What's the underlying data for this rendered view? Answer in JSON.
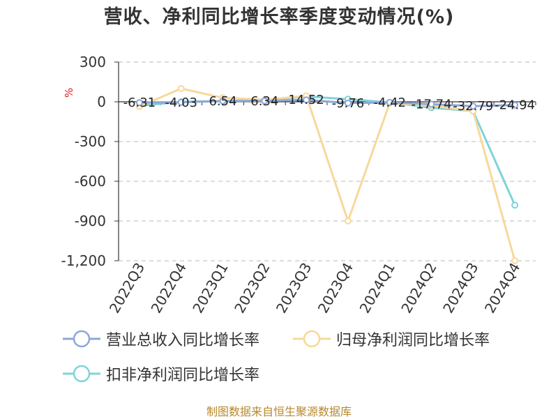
{
  "title": "营收、净利同比增长率季度变动情况(%)",
  "source": "制图数据来自恒生聚源数据库",
  "colors": {
    "revenue": "#8ea6d8",
    "net_profit": "#f8d89a",
    "deducted_net_profit": "#7fd3da",
    "axis": "#333333",
    "grid": "#c8c8c8"
  },
  "chart_data": {
    "type": "line",
    "title": "营收、净利同比增长率季度变动情况(%)",
    "ylabel": "%",
    "ylim": [
      -1200,
      300
    ],
    "yticks": [
      300,
      0,
      -300,
      -600,
      -900,
      -1200
    ],
    "ytick_labels": [
      "300",
      "0",
      "-300",
      "-600",
      "-900",
      "-1,200"
    ],
    "grid": true,
    "legend_position": "bottom-left",
    "categories": [
      "2022Q3",
      "2022Q4",
      "2023Q1",
      "2023Q2",
      "2023Q3",
      "2023Q4",
      "2024Q1",
      "2024Q2",
      "2024Q3",
      "2024Q4"
    ],
    "series": [
      {
        "name": "营业总收入同比增长率",
        "values": [
          -6.31,
          -4.03,
          6.54,
          6.34,
          14.52,
          -9.76,
          -4.42,
          -17.74,
          -32.79,
          -24.94
        ],
        "data_labels": [
          "-6.31",
          "-4.03",
          "6.54",
          "6.34",
          "14.52",
          "-9.76",
          "-4.42",
          "-17.74",
          "-32.79",
          "-24.94"
        ]
      },
      {
        "name": "归母净利润同比增长率",
        "values": [
          -35,
          100,
          30,
          15,
          45,
          -900,
          -10,
          -30,
          -70,
          -1200
        ]
      },
      {
        "name": "扣非净利润同比增长率",
        "values": [
          -30,
          0,
          5,
          10,
          40,
          20,
          -5,
          -45,
          -70,
          -780
        ]
      }
    ]
  }
}
